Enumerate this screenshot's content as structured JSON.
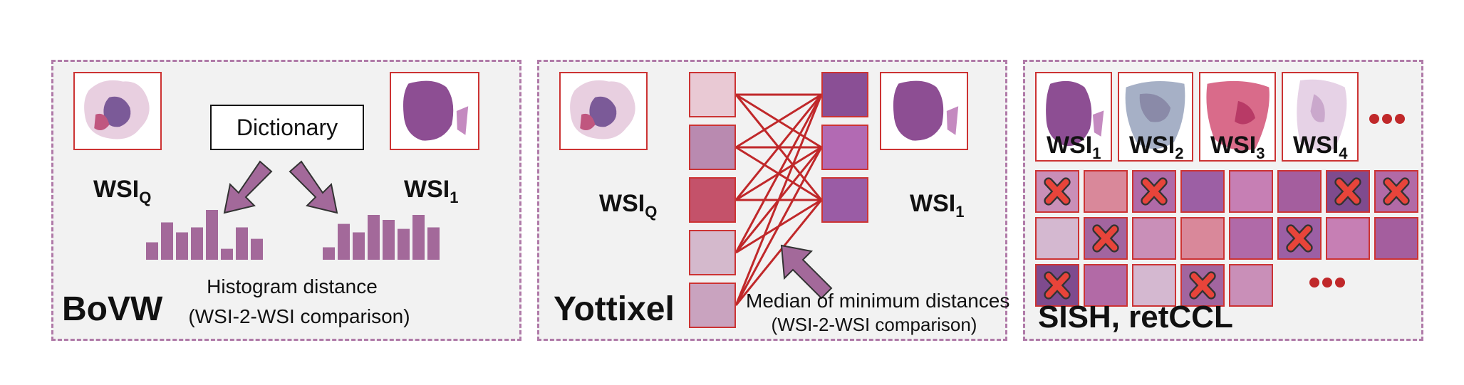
{
  "colors": {
    "panel_border": "#b07aa8",
    "panel_bg": "#f2f2f2",
    "frame_red": "#cc3333",
    "arrow_purple": "#a3699a",
    "bar_purple": "#a3699a",
    "link_red": "#c0282a",
    "x_red": "#e8443a"
  },
  "bovw": {
    "method_name": "BoVW",
    "query_label": "WSI",
    "query_sub": "Q",
    "db_label": "WSI",
    "db_sub": "1",
    "dictionary_label": "Dictionary",
    "caption_line1": "Histogram distance",
    "caption_line2": "(WSI-2-WSI comparison)",
    "histogram_left": [
      0.35,
      0.75,
      0.55,
      0.65,
      1.0,
      0.22,
      0.65,
      0.42
    ],
    "histogram_right": [
      0.25,
      0.72,
      0.55,
      0.9,
      0.8,
      0.62,
      0.9,
      0.65
    ]
  },
  "yottixel": {
    "method_name": "Yottixel",
    "query_label": "WSI",
    "query_sub": "Q",
    "db_label": "WSI",
    "db_sub": "1",
    "caption_line1": "Median of minimum distances",
    "caption_line2": "(WSI-2-WSI comparison)"
  },
  "sish": {
    "method_name": "SISH, retCCL",
    "wsi_labels": [
      {
        "label": "WSI",
        "sub": "1"
      },
      {
        "label": "WSI",
        "sub": "2"
      },
      {
        "label": "WSI",
        "sub": "3"
      },
      {
        "label": "WSI",
        "sub": "4"
      }
    ],
    "ellipsis_icon": "ellipsis-dots-icon",
    "cross_icon": "x-mark-icon"
  }
}
